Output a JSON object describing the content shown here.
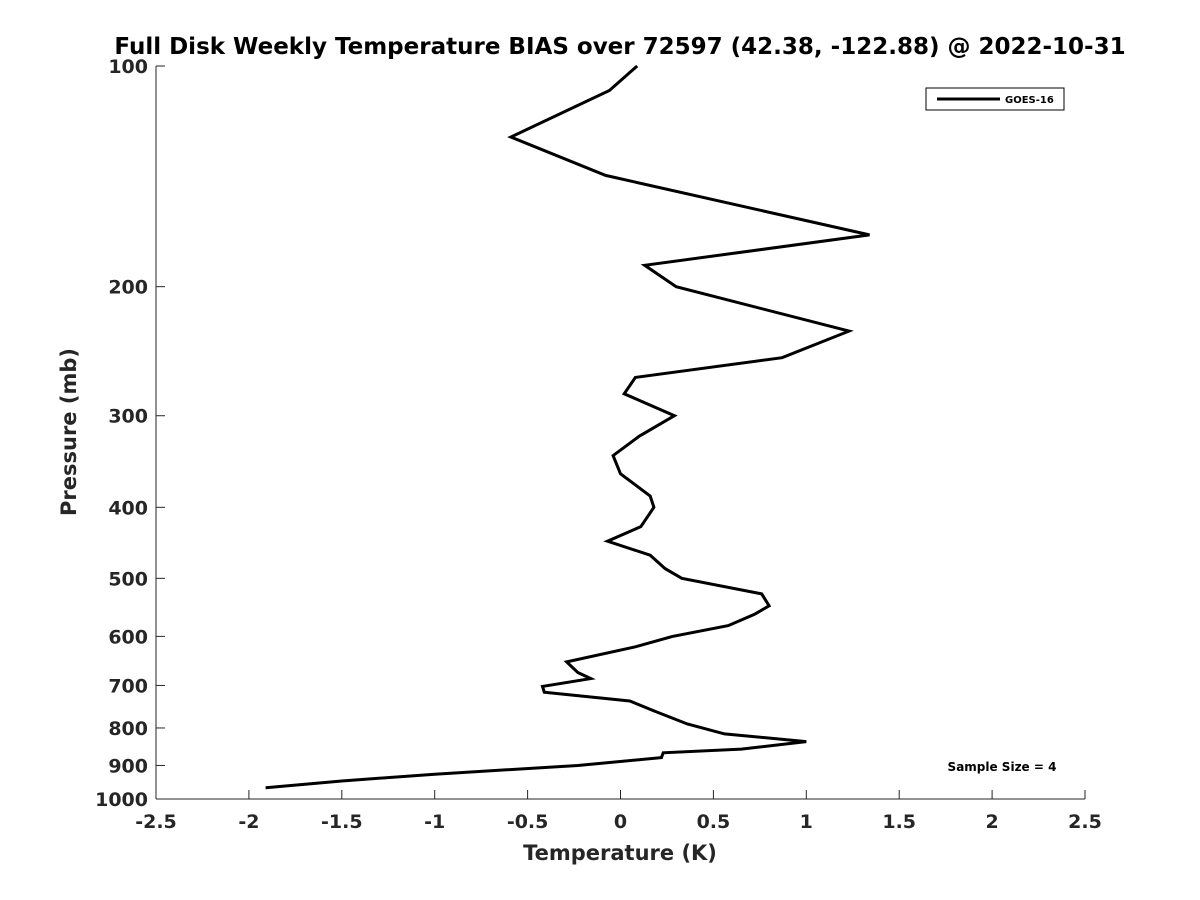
{
  "chart_data": {
    "type": "line",
    "title": "Full Disk Weekly Temperature BIAS over 72597 (42.38, -122.88) @ 2022-10-31",
    "xlabel": "Temperature (K)",
    "ylabel": "Pressure (mb)",
    "xlim": [
      -2.5,
      2.5
    ],
    "ylim": [
      100,
      1000
    ],
    "y_scale": "log",
    "y_reversed": true,
    "grid": false,
    "legend_position": "top-right",
    "x_ticks": [
      "-2.5",
      "-2",
      "-1.5",
      "-1",
      "-0.5",
      "0",
      "0.5",
      "1",
      "1.5",
      "2",
      "2.5"
    ],
    "y_ticks": [
      "100",
      "200",
      "300",
      "400",
      "500",
      "600",
      "700",
      "800",
      "900",
      "1000"
    ],
    "annotation": "Sample Size = 4",
    "series": [
      {
        "name": "GOES-16",
        "color": "#000000",
        "points": [
          {
            "x": 0.09,
            "y": 100
          },
          {
            "x": -0.06,
            "y": 108
          },
          {
            "x": -0.59,
            "y": 125
          },
          {
            "x": -0.08,
            "y": 141
          },
          {
            "x": 1.34,
            "y": 170
          },
          {
            "x": 0.13,
            "y": 187
          },
          {
            "x": 0.3,
            "y": 200
          },
          {
            "x": 1.23,
            "y": 230
          },
          {
            "x": 0.87,
            "y": 250
          },
          {
            "x": 0.08,
            "y": 266
          },
          {
            "x": 0.02,
            "y": 280
          },
          {
            "x": 0.29,
            "y": 300
          },
          {
            "x": 0.1,
            "y": 320
          },
          {
            "x": -0.04,
            "y": 340
          },
          {
            "x": 0.0,
            "y": 360
          },
          {
            "x": 0.16,
            "y": 386
          },
          {
            "x": 0.18,
            "y": 400
          },
          {
            "x": 0.11,
            "y": 425
          },
          {
            "x": -0.07,
            "y": 445
          },
          {
            "x": 0.16,
            "y": 465
          },
          {
            "x": 0.24,
            "y": 485
          },
          {
            "x": 0.33,
            "y": 500
          },
          {
            "x": 0.76,
            "y": 525
          },
          {
            "x": 0.8,
            "y": 545
          },
          {
            "x": 0.72,
            "y": 560
          },
          {
            "x": 0.58,
            "y": 580
          },
          {
            "x": 0.28,
            "y": 600
          },
          {
            "x": 0.08,
            "y": 620
          },
          {
            "x": -0.29,
            "y": 650
          },
          {
            "x": -0.23,
            "y": 672
          },
          {
            "x": -0.16,
            "y": 685
          },
          {
            "x": -0.42,
            "y": 702
          },
          {
            "x": -0.41,
            "y": 715
          },
          {
            "x": 0.05,
            "y": 735
          },
          {
            "x": 0.19,
            "y": 760
          },
          {
            "x": 0.36,
            "y": 790
          },
          {
            "x": 0.56,
            "y": 815
          },
          {
            "x": 1.0,
            "y": 835
          },
          {
            "x": 0.65,
            "y": 855
          },
          {
            "x": 0.23,
            "y": 865
          },
          {
            "x": 0.22,
            "y": 878
          },
          {
            "x": -0.23,
            "y": 900
          },
          {
            "x": -1.0,
            "y": 925
          },
          {
            "x": -1.5,
            "y": 945
          },
          {
            "x": -1.91,
            "y": 965
          }
        ]
      }
    ]
  }
}
